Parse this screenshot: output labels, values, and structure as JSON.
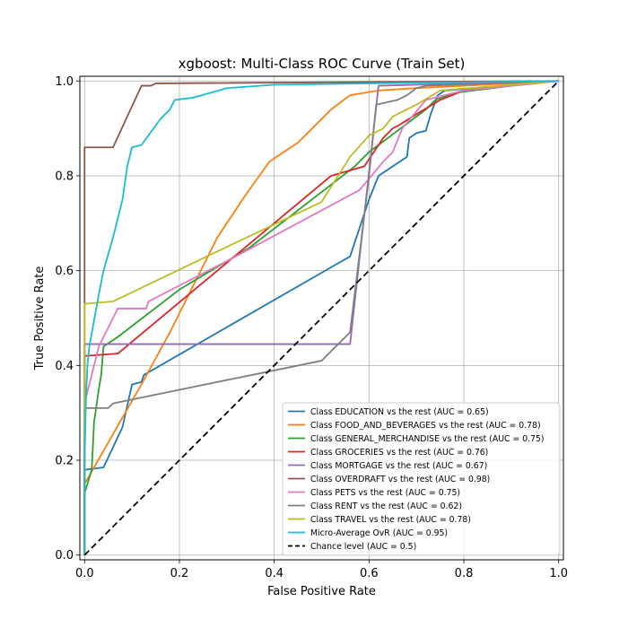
{
  "chart_data": {
    "type": "line",
    "title": "xgboost: Multi-Class ROC Curve (Train Set)",
    "xlabel": "False Positive Rate",
    "ylabel": "True Positive Rate",
    "xlim": [
      -0.01,
      1.01
    ],
    "ylim": [
      -0.01,
      1.01
    ],
    "xticks": [
      "0.0",
      "0.2",
      "0.4",
      "0.6",
      "0.8",
      "1.0"
    ],
    "yticks": [
      "0.0",
      "0.2",
      "0.4",
      "0.6",
      "0.8",
      "1.0"
    ],
    "grid": true,
    "legend_position": "lower-right",
    "series": [
      {
        "name": "Class EDUCATION vs the rest (AUC = 0.65)",
        "color": "#1f77b4",
        "style": "solid",
        "points": [
          [
            0,
            0
          ],
          [
            0,
            0.18
          ],
          [
            0.04,
            0.185
          ],
          [
            0.08,
            0.27
          ],
          [
            0.1,
            0.36
          ],
          [
            0.12,
            0.365
          ],
          [
            0.125,
            0.38
          ],
          [
            0.56,
            0.63
          ],
          [
            0.6,
            0.75
          ],
          [
            0.62,
            0.8
          ],
          [
            0.68,
            0.84
          ],
          [
            0.685,
            0.88
          ],
          [
            0.7,
            0.89
          ],
          [
            0.72,
            0.895
          ],
          [
            0.73,
            0.93
          ],
          [
            0.745,
            0.97
          ],
          [
            0.76,
            0.98
          ],
          [
            0.9,
            0.99
          ],
          [
            1,
            1
          ]
        ]
      },
      {
        "name": "Class FOOD_AND_BEVERAGES vs the rest (AUC = 0.78)",
        "color": "#ff7f0e",
        "style": "solid",
        "points": [
          [
            0,
            0
          ],
          [
            0,
            0.15
          ],
          [
            0.12,
            0.36
          ],
          [
            0.18,
            0.47
          ],
          [
            0.28,
            0.67
          ],
          [
            0.34,
            0.76
          ],
          [
            0.39,
            0.83
          ],
          [
            0.45,
            0.87
          ],
          [
            0.52,
            0.94
          ],
          [
            0.56,
            0.97
          ],
          [
            0.62,
            0.98
          ],
          [
            0.7,
            0.985
          ],
          [
            0.8,
            0.99
          ],
          [
            1,
            1
          ]
        ]
      },
      {
        "name": "Class GENERAL_MERCHANDISE vs the rest (AUC = 0.75)",
        "color": "#2ca02c",
        "style": "solid",
        "points": [
          [
            0,
            0
          ],
          [
            0,
            0.13
          ],
          [
            0.015,
            0.18
          ],
          [
            0.02,
            0.28
          ],
          [
            0.03,
            0.35
          ],
          [
            0.035,
            0.38
          ],
          [
            0.04,
            0.44
          ],
          [
            0.07,
            0.46
          ],
          [
            0.2,
            0.56
          ],
          [
            0.35,
            0.65
          ],
          [
            0.57,
            0.82
          ],
          [
            0.6,
            0.85
          ],
          [
            0.72,
            0.94
          ],
          [
            0.74,
            0.96
          ],
          [
            0.78,
            0.975
          ],
          [
            0.9,
            0.99
          ],
          [
            1,
            1
          ]
        ]
      },
      {
        "name": "Class GROCERIES vs the rest (AUC = 0.76)",
        "color": "#d62728",
        "style": "solid",
        "points": [
          [
            0,
            0
          ],
          [
            0,
            0.42
          ],
          [
            0.07,
            0.425
          ],
          [
            0.1,
            0.45
          ],
          [
            0.28,
            0.6
          ],
          [
            0.4,
            0.7
          ],
          [
            0.52,
            0.8
          ],
          [
            0.59,
            0.82
          ],
          [
            0.63,
            0.88
          ],
          [
            0.65,
            0.9
          ],
          [
            0.66,
            0.905
          ],
          [
            0.7,
            0.93
          ],
          [
            0.75,
            0.96
          ],
          [
            0.8,
            0.98
          ],
          [
            0.88,
            0.99
          ],
          [
            1,
            1
          ]
        ]
      },
      {
        "name": "Class MORTGAGE vs the rest (AUC = 0.67)",
        "color": "#9467bd",
        "style": "solid",
        "points": [
          [
            0,
            0
          ],
          [
            0,
            0.445
          ],
          [
            0.56,
            0.445
          ],
          [
            0.62,
            0.99
          ],
          [
            1,
            1
          ]
        ]
      },
      {
        "name": "Class OVERDRAFT vs the rest (AUC = 0.98)",
        "color": "#8c564b",
        "style": "solid",
        "points": [
          [
            0,
            0
          ],
          [
            0,
            0.86
          ],
          [
            0.06,
            0.86
          ],
          [
            0.12,
            0.99
          ],
          [
            0.14,
            0.99
          ],
          [
            0.15,
            0.995
          ],
          [
            1,
            1
          ]
        ]
      },
      {
        "name": "Class PETS vs the rest (AUC = 0.75)",
        "color": "#e377c2",
        "style": "solid",
        "points": [
          [
            0,
            0
          ],
          [
            0,
            0.32
          ],
          [
            0.03,
            0.44
          ],
          [
            0.07,
            0.52
          ],
          [
            0.13,
            0.52
          ],
          [
            0.135,
            0.535
          ],
          [
            0.3,
            0.62
          ],
          [
            0.58,
            0.77
          ],
          [
            0.63,
            0.83
          ],
          [
            0.65,
            0.85
          ],
          [
            0.67,
            0.9
          ],
          [
            0.72,
            0.96
          ],
          [
            0.8,
            0.98
          ],
          [
            1,
            1
          ]
        ]
      },
      {
        "name": "Class RENT vs the rest (AUC = 0.62)",
        "color": "#7f7f7f",
        "style": "solid",
        "points": [
          [
            0,
            0
          ],
          [
            0,
            0.31
          ],
          [
            0.05,
            0.31
          ],
          [
            0.06,
            0.32
          ],
          [
            0.5,
            0.41
          ],
          [
            0.56,
            0.47
          ],
          [
            0.6,
            0.8
          ],
          [
            0.615,
            0.95
          ],
          [
            0.66,
            0.96
          ],
          [
            0.68,
            0.97
          ],
          [
            0.7,
            0.985
          ],
          [
            0.72,
            0.99
          ],
          [
            1,
            1
          ]
        ]
      },
      {
        "name": "Class TRAVEL vs the rest (AUC = 0.78)",
        "color": "#bcbd22",
        "style": "solid",
        "points": [
          [
            0,
            0
          ],
          [
            0,
            0.53
          ],
          [
            0.06,
            0.535
          ],
          [
            0.3,
            0.65
          ],
          [
            0.5,
            0.745
          ],
          [
            0.56,
            0.84
          ],
          [
            0.6,
            0.885
          ],
          [
            0.63,
            0.9
          ],
          [
            0.65,
            0.925
          ],
          [
            0.7,
            0.95
          ],
          [
            0.75,
            0.98
          ],
          [
            1,
            1
          ]
        ]
      },
      {
        "name": "Micro-Average OvR (AUC = 0.95)",
        "color": "#17becf",
        "style": "solid",
        "points": [
          [
            0,
            0
          ],
          [
            0,
            0.2
          ],
          [
            0.003,
            0.33
          ],
          [
            0.006,
            0.4
          ],
          [
            0.01,
            0.44
          ],
          [
            0.03,
            0.55
          ],
          [
            0.04,
            0.6
          ],
          [
            0.06,
            0.67
          ],
          [
            0.08,
            0.75
          ],
          [
            0.09,
            0.82
          ],
          [
            0.1,
            0.86
          ],
          [
            0.12,
            0.865
          ],
          [
            0.16,
            0.92
          ],
          [
            0.18,
            0.94
          ],
          [
            0.19,
            0.96
          ],
          [
            0.23,
            0.965
          ],
          [
            0.3,
            0.985
          ],
          [
            0.4,
            0.992
          ],
          [
            0.6,
            0.995
          ],
          [
            1,
            1
          ]
        ]
      },
      {
        "name": "Chance level (AUC = 0.5)",
        "color": "#000000",
        "style": "dashed",
        "points": [
          [
            0,
            0
          ],
          [
            1,
            1
          ]
        ]
      }
    ]
  }
}
